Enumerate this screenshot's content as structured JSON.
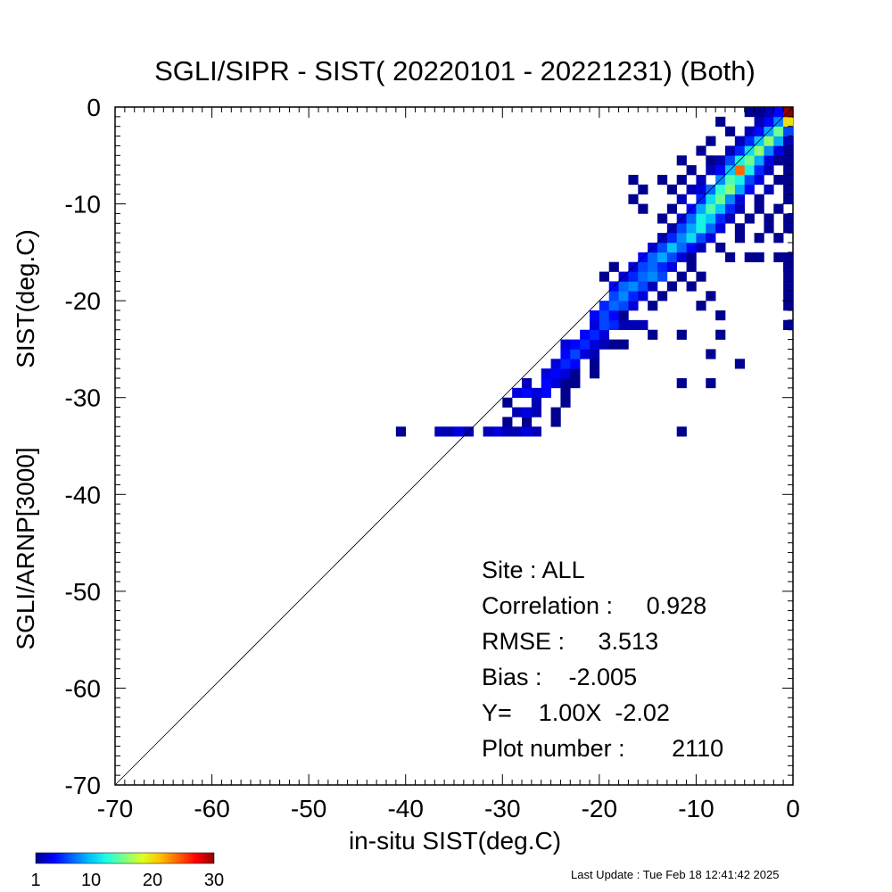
{
  "chart_data": {
    "type": "heatmap",
    "title": "SGLI/SIPR - SIST( 20220101 - 20221231) (Both)",
    "xlabel": "in-situ SIST(deg.C)",
    "ylabel_lines": [
      "SGLI/ARNP[3000]",
      "SIST(deg.C)"
    ],
    "xlim": [
      -70,
      0
    ],
    "ylim": [
      -70,
      0
    ],
    "x_ticks": [
      "-70",
      "-60",
      "-50",
      "-40",
      "-30",
      "-20",
      "-10",
      "0"
    ],
    "y_ticks": [
      "0",
      "-10",
      "-20",
      "-30",
      "-40",
      "-50",
      "-60",
      "-70"
    ],
    "one_to_one_line": true,
    "bin_size": 1,
    "colorbar": {
      "min": 1,
      "max": 30,
      "tick_labels": [
        "1",
        "10",
        "20",
        "30"
      ],
      "colors": [
        "#00008f",
        "#0000ff",
        "#0060ff",
        "#00c0ff",
        "#20ffdf",
        "#80ff80",
        "#dfff20",
        "#ffc000",
        "#ff6000",
        "#ff0000",
        "#8f0000"
      ]
    },
    "stats": {
      "site": "Site : ALL",
      "correlation": "Correlation :     0.928",
      "rmse": "RMSE :     3.513",
      "bias": "Bias :    -2.005",
      "fit": "Y=    1.00X  -2.02",
      "plot_number": "Plot number :       2110"
    },
    "cells": [
      [
        -41,
        -34,
        1
      ],
      [
        -37,
        -34,
        2
      ],
      [
        -36,
        -34,
        2
      ],
      [
        -35,
        -34,
        3
      ],
      [
        -34,
        -34,
        2
      ],
      [
        -32,
        -34,
        2
      ],
      [
        -31,
        -34,
        3
      ],
      [
        -30,
        -34,
        2
      ],
      [
        -29,
        -34,
        2
      ],
      [
        -28,
        -34,
        3
      ],
      [
        -27,
        -34,
        2
      ],
      [
        -12,
        -34,
        1
      ],
      [
        -25,
        -33,
        1
      ],
      [
        -30,
        -33,
        1
      ],
      [
        -28,
        -33,
        1
      ],
      [
        -29,
        -32,
        2
      ],
      [
        -28,
        -32,
        3
      ],
      [
        -27,
        -32,
        2
      ],
      [
        -25,
        -32,
        1
      ],
      [
        -30,
        -31,
        1
      ],
      [
        -27,
        -31,
        2
      ],
      [
        -24,
        -31,
        1
      ],
      [
        -29,
        -30,
        3
      ],
      [
        -28,
        -30,
        4
      ],
      [
        -27,
        -30,
        3
      ],
      [
        -26,
        -30,
        4
      ],
      [
        -24,
        -30,
        1
      ],
      [
        -28,
        -29,
        2
      ],
      [
        -26,
        -29,
        4
      ],
      [
        -25,
        -29,
        3
      ],
      [
        -24,
        -29,
        1
      ],
      [
        -23,
        -29,
        1
      ],
      [
        -12,
        -29,
        1
      ],
      [
        -9,
        -29,
        1
      ],
      [
        -26,
        -28,
        3
      ],
      [
        -25,
        -28,
        4
      ],
      [
        -24,
        -28,
        3
      ],
      [
        -23,
        -28,
        1
      ],
      [
        -21,
        -28,
        1
      ],
      [
        -25,
        -27,
        3
      ],
      [
        -24,
        -27,
        5
      ],
      [
        -23,
        -27,
        4
      ],
      [
        -21,
        -27,
        1
      ],
      [
        -6,
        -27,
        1
      ],
      [
        -24,
        -26,
        4
      ],
      [
        -23,
        -26,
        6
      ],
      [
        -22,
        -26,
        3
      ],
      [
        -21,
        -26,
        2
      ],
      [
        -9,
        -26,
        1
      ],
      [
        -24,
        -25,
        3
      ],
      [
        -23,
        -25,
        4
      ],
      [
        -22,
        -25,
        5
      ],
      [
        -21,
        -25,
        3
      ],
      [
        -20,
        -25,
        2
      ],
      [
        -19,
        -25,
        1
      ],
      [
        -18,
        -25,
        1
      ],
      [
        -22,
        -24,
        4
      ],
      [
        -21,
        -24,
        5
      ],
      [
        -20,
        -24,
        3
      ],
      [
        -15,
        -24,
        1
      ],
      [
        -12,
        -24,
        1
      ],
      [
        -8,
        -24,
        1
      ],
      [
        -21,
        -23,
        3
      ],
      [
        -20,
        -23,
        6
      ],
      [
        -19,
        -23,
        5
      ],
      [
        -18,
        -23,
        2
      ],
      [
        -17,
        -23,
        2
      ],
      [
        -16,
        -23,
        2
      ],
      [
        -1,
        -23,
        1
      ],
      [
        0,
        -23,
        1
      ],
      [
        -21,
        -22,
        4
      ],
      [
        -20,
        -22,
        6
      ],
      [
        -19,
        -22,
        4
      ],
      [
        -18,
        -22,
        1
      ],
      [
        -8,
        -22,
        1
      ],
      [
        -20,
        -21,
        5
      ],
      [
        -19,
        -21,
        7
      ],
      [
        -18,
        -21,
        6
      ],
      [
        -17,
        -21,
        3
      ],
      [
        -15,
        -21,
        1
      ],
      [
        -10,
        -21,
        1
      ],
      [
        -1,
        -21,
        1
      ],
      [
        -19,
        -20,
        6
      ],
      [
        -18,
        -20,
        8
      ],
      [
        -17,
        -20,
        5
      ],
      [
        -16,
        -20,
        3
      ],
      [
        -14,
        -20,
        1
      ],
      [
        -9,
        -20,
        1
      ],
      [
        -1,
        -20,
        1
      ],
      [
        -19,
        -19,
        4
      ],
      [
        -18,
        -19,
        7
      ],
      [
        -17,
        -19,
        8
      ],
      [
        -16,
        -19,
        6
      ],
      [
        -15,
        -19,
        2
      ],
      [
        -13,
        -19,
        1
      ],
      [
        -11,
        -19,
        1
      ],
      [
        -1,
        -19,
        1
      ],
      [
        -20,
        -18,
        1
      ],
      [
        -18,
        -18,
        3
      ],
      [
        -17,
        -18,
        5
      ],
      [
        -16,
        -18,
        7
      ],
      [
        -15,
        -18,
        8
      ],
      [
        -14,
        -18,
        6
      ],
      [
        -12,
        -18,
        1
      ],
      [
        -10,
        -18,
        1
      ],
      [
        0,
        -18,
        1
      ],
      [
        -19,
        -17,
        1
      ],
      [
        -17,
        -17,
        3
      ],
      [
        -16,
        -17,
        6
      ],
      [
        -15,
        -17,
        7
      ],
      [
        -14,
        -17,
        5
      ],
      [
        -13,
        -17,
        3
      ],
      [
        -11,
        -17,
        1
      ],
      [
        -1,
        -17,
        1
      ],
      [
        0,
        -17,
        1
      ],
      [
        -16,
        -16,
        4
      ],
      [
        -15,
        -16,
        7
      ],
      [
        -14,
        -16,
        9
      ],
      [
        -13,
        -16,
        6
      ],
      [
        -12,
        -16,
        3
      ],
      [
        -11,
        -16,
        1
      ],
      [
        -7,
        -16,
        1
      ],
      [
        -5,
        -16,
        1
      ],
      [
        -4,
        -16,
        1
      ],
      [
        -2,
        -16,
        1
      ],
      [
        -1,
        -16,
        1
      ],
      [
        -15,
        -15,
        3
      ],
      [
        -14,
        -15,
        6
      ],
      [
        -13,
        -15,
        10
      ],
      [
        -12,
        -15,
        7
      ],
      [
        -11,
        -15,
        4
      ],
      [
        -10,
        -15,
        2
      ],
      [
        -8,
        -15,
        1
      ],
      [
        -14,
        -14,
        2
      ],
      [
        -13,
        -14,
        5
      ],
      [
        -12,
        -14,
        8
      ],
      [
        -11,
        -14,
        11
      ],
      [
        -10,
        -14,
        6
      ],
      [
        -9,
        -14,
        3
      ],
      [
        -6,
        -14,
        1
      ],
      [
        -4,
        -14,
        1
      ],
      [
        -2,
        -14,
        1
      ],
      [
        -13,
        -13,
        2
      ],
      [
        -12,
        -13,
        6
      ],
      [
        -11,
        -13,
        9
      ],
      [
        -10,
        -13,
        12
      ],
      [
        -9,
        -13,
        7
      ],
      [
        -8,
        -13,
        3
      ],
      [
        -6,
        -13,
        1
      ],
      [
        -3,
        -13,
        1
      ],
      [
        -1,
        -13,
        1
      ],
      [
        -14,
        -12,
        1
      ],
      [
        -12,
        -12,
        3
      ],
      [
        -11,
        -12,
        7
      ],
      [
        -10,
        -12,
        12
      ],
      [
        -9,
        -12,
        10
      ],
      [
        -8,
        -12,
        5
      ],
      [
        -7,
        -12,
        2
      ],
      [
        -5,
        -12,
        1
      ],
      [
        -3,
        -12,
        1
      ],
      [
        -1,
        -12,
        1
      ],
      [
        -16,
        -11,
        1
      ],
      [
        -13,
        -11,
        1
      ],
      [
        -11,
        -11,
        4
      ],
      [
        -10,
        -11,
        9
      ],
      [
        -9,
        -11,
        14
      ],
      [
        -8,
        -11,
        10
      ],
      [
        -7,
        -11,
        5
      ],
      [
        -6,
        -11,
        2
      ],
      [
        -4,
        -11,
        1
      ],
      [
        -2,
        -11,
        1
      ],
      [
        -17,
        -10,
        1
      ],
      [
        -12,
        -10,
        2
      ],
      [
        -10,
        -10,
        5
      ],
      [
        -9,
        -10,
        11
      ],
      [
        -8,
        -10,
        15
      ],
      [
        -7,
        -10,
        8
      ],
      [
        -6,
        -10,
        3
      ],
      [
        -4,
        -10,
        1
      ],
      [
        -1,
        -10,
        1
      ],
      [
        -16,
        -9,
        1
      ],
      [
        -13,
        -9,
        1
      ],
      [
        -11,
        -9,
        2
      ],
      [
        -10,
        -9,
        3
      ],
      [
        -9,
        -9,
        7
      ],
      [
        -8,
        -9,
        13
      ],
      [
        -7,
        -9,
        16
      ],
      [
        -6,
        -9,
        9
      ],
      [
        -5,
        -9,
        4
      ],
      [
        -3,
        -9,
        2
      ],
      [
        -1,
        -9,
        1
      ],
      [
        -17,
        -8,
        1
      ],
      [
        -14,
        -8,
        1
      ],
      [
        -12,
        -8,
        1
      ],
      [
        -10,
        -8,
        2
      ],
      [
        -8,
        -8,
        8
      ],
      [
        -7,
        -8,
        14
      ],
      [
        -6,
        -8,
        12
      ],
      [
        -5,
        -8,
        6
      ],
      [
        -4,
        -8,
        3
      ],
      [
        -2,
        -8,
        1
      ],
      [
        0,
        -8,
        1
      ],
      [
        -11,
        -7,
        1
      ],
      [
        -9,
        -7,
        2
      ],
      [
        -8,
        -7,
        4
      ],
      [
        -7,
        -7,
        10
      ],
      [
        -6,
        -7,
        24
      ],
      [
        -5,
        -7,
        12
      ],
      [
        -4,
        -7,
        5
      ],
      [
        -3,
        -7,
        2
      ],
      [
        -1,
        -7,
        1
      ],
      [
        -12,
        -6,
        1
      ],
      [
        -9,
        -6,
        1
      ],
      [
        -8,
        -6,
        2
      ],
      [
        -7,
        -6,
        6
      ],
      [
        -6,
        -6,
        12
      ],
      [
        -5,
        -6,
        15
      ],
      [
        -4,
        -6,
        9
      ],
      [
        -3,
        -6,
        3
      ],
      [
        -2,
        -6,
        1
      ],
      [
        0,
        -6,
        1
      ],
      [
        -10,
        -5,
        1
      ],
      [
        -7,
        -5,
        2
      ],
      [
        -6,
        -5,
        5
      ],
      [
        -5,
        -5,
        11
      ],
      [
        -4,
        -5,
        16
      ],
      [
        -3,
        -5,
        8
      ],
      [
        -2,
        -5,
        3
      ],
      [
        -1,
        -5,
        1
      ],
      [
        -9,
        -4,
        1
      ],
      [
        -6,
        -4,
        2
      ],
      [
        -5,
        -4,
        5
      ],
      [
        -4,
        -4,
        10
      ],
      [
        -3,
        -4,
        16
      ],
      [
        -2,
        -4,
        9
      ],
      [
        -1,
        -4,
        4
      ],
      [
        0,
        -4,
        2
      ],
      [
        -7,
        -3,
        1
      ],
      [
        -5,
        -3,
        2
      ],
      [
        -4,
        -3,
        4
      ],
      [
        -3,
        -3,
        9
      ],
      [
        -2,
        -3,
        15
      ],
      [
        -1,
        -3,
        12
      ],
      [
        0,
        -3,
        6
      ],
      [
        -8,
        -2,
        1
      ],
      [
        -4,
        -2,
        2
      ],
      [
        -3,
        -2,
        4
      ],
      [
        -2,
        -2,
        8
      ],
      [
        -1,
        -2,
        18
      ],
      [
        0,
        -2,
        20
      ],
      [
        -5,
        -1,
        1
      ],
      [
        -3,
        -1,
        2
      ],
      [
        -2,
        -1,
        5
      ],
      [
        -1,
        -1,
        12
      ],
      [
        0,
        -1,
        28
      ],
      [
        -4,
        0,
        1
      ],
      [
        -3,
        0,
        2
      ],
      [
        -2,
        0,
        4
      ],
      [
        -1,
        0,
        8
      ],
      [
        0,
        0,
        30
      ]
    ]
  },
  "footer": {
    "last_update": "Last Update : Tue Feb 18 12:41:42 2025"
  }
}
